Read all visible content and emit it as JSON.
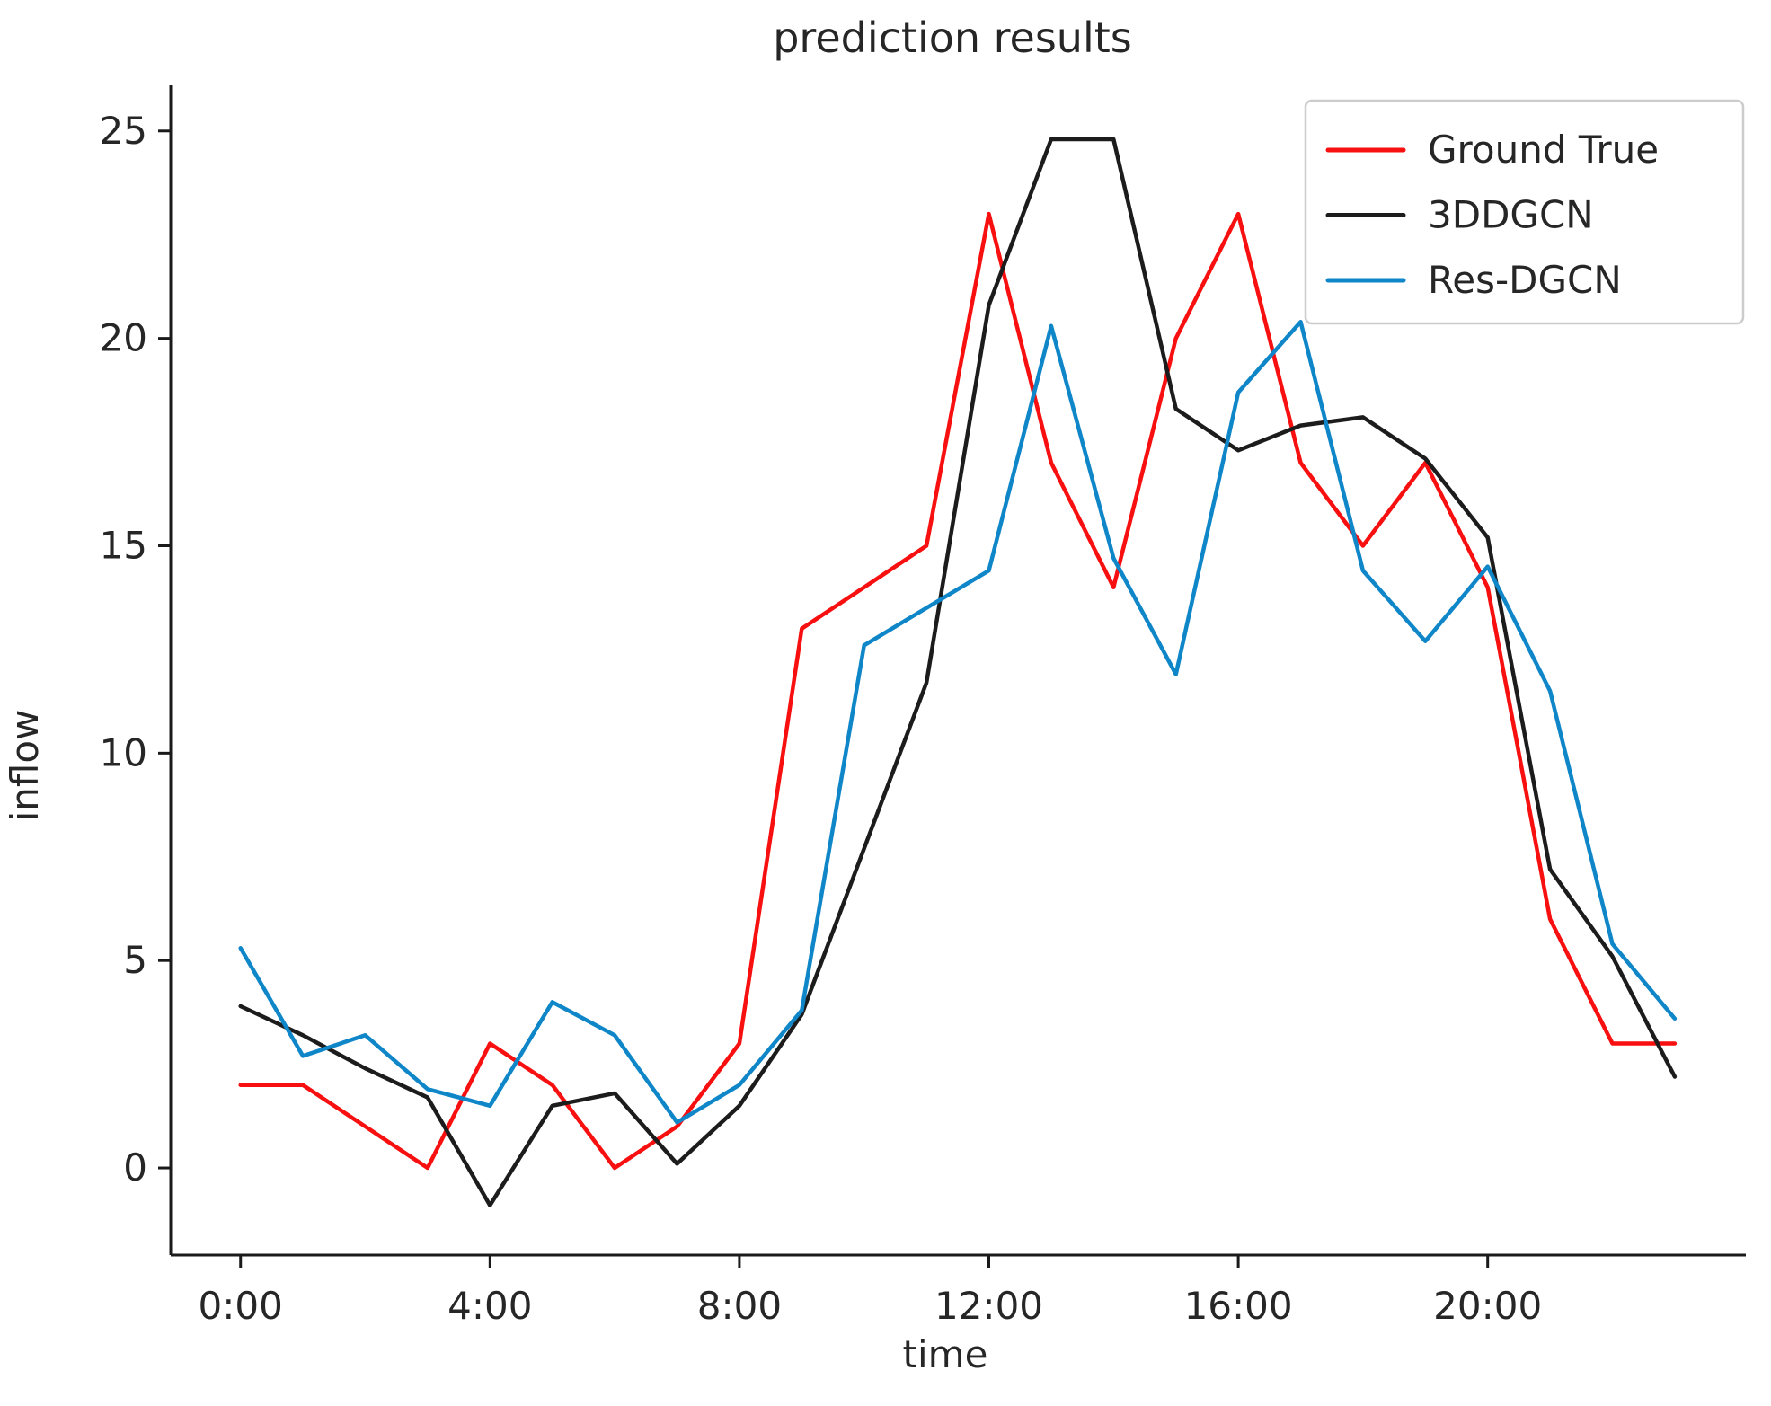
{
  "title": "prediction results",
  "chart_data": {
    "type": "line",
    "title": "prediction results",
    "xlabel": "time",
    "ylabel": "inflow",
    "grid": false,
    "legend_position": "upper right",
    "xlim": [
      -1.12,
      24.14
    ],
    "ylim": [
      -2.1,
      26.1
    ],
    "x": [
      0,
      1,
      2,
      3,
      4,
      5,
      6,
      7,
      8,
      9,
      10,
      11,
      12,
      13,
      14,
      15,
      16,
      17,
      18,
      19,
      20,
      21,
      22,
      23
    ],
    "x_ticks": [
      {
        "value": 0,
        "label": "0:00"
      },
      {
        "value": 4,
        "label": "4:00"
      },
      {
        "value": 8,
        "label": "8:00"
      },
      {
        "value": 12,
        "label": "12:00"
      },
      {
        "value": 16,
        "label": "16:00"
      },
      {
        "value": 20,
        "label": "20:00"
      }
    ],
    "y_ticks": [
      {
        "value": 0,
        "label": "0"
      },
      {
        "value": 5,
        "label": "5"
      },
      {
        "value": 10,
        "label": "10"
      },
      {
        "value": 15,
        "label": "15"
      },
      {
        "value": 20,
        "label": "20"
      },
      {
        "value": 25,
        "label": "25"
      }
    ],
    "series": [
      {
        "name": "Ground True",
        "color": "#f80f0f",
        "values": [
          2,
          2,
          1,
          0,
          3,
          2,
          0,
          1,
          3,
          13,
          14,
          15,
          23,
          17,
          14,
          20,
          23,
          17,
          15,
          17,
          14,
          6,
          3,
          3
        ]
      },
      {
        "name": "3DDGCN",
        "color": "#1c1c1c",
        "values": [
          3.9,
          3.2,
          2.4,
          1.7,
          -0.9,
          1.5,
          1.8,
          0.1,
          1.5,
          3.7,
          7.7,
          11.7,
          20.8,
          24.8,
          24.8,
          18.3,
          17.3,
          17.9,
          18.1,
          17.1,
          15.2,
          7.2,
          5.1,
          2.2
        ]
      },
      {
        "name": "Res-DGCN",
        "color": "#0e86c8",
        "values": [
          5.3,
          2.7,
          3.2,
          1.9,
          1.5,
          4.0,
          3.2,
          1.1,
          2.0,
          3.8,
          12.6,
          13.5,
          14.4,
          20.3,
          14.7,
          11.9,
          18.7,
          20.4,
          14.4,
          12.7,
          14.5,
          11.5,
          5.4,
          3.6
        ]
      }
    ]
  },
  "colors": {
    "axis": "#1a1a1a",
    "text": "#262626",
    "legend_border": "#cccccc",
    "background": "#ffffff"
  }
}
